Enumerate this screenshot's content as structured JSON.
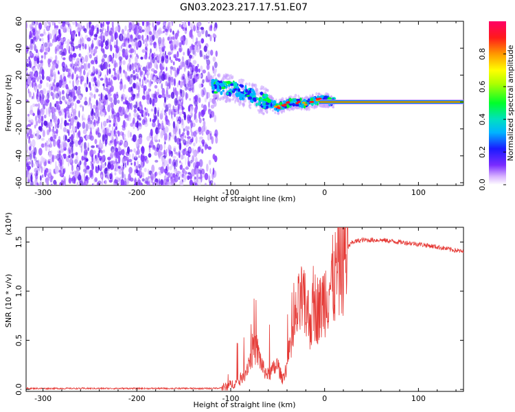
{
  "title": "GN03.2023.217.17.51.E07",
  "colors": {
    "snr_line": "#e53935",
    "spectrogram_noise": "#7a2cff",
    "background": "#ffffff"
  },
  "chart_data": [
    {
      "type": "heatmap",
      "panel": "top",
      "xlabel": "Height of straight line (km)",
      "ylabel": "Frequency (Hz)",
      "xlim": [
        -318,
        148
      ],
      "ylim": [
        -62,
        60
      ],
      "xticks": [
        -300,
        -200,
        -100,
        0,
        100
      ],
      "yticks": [
        60,
        40,
        20,
        0,
        -20,
        -40,
        -60
      ],
      "grid": false,
      "description_of_regions": {
        "broadband_noise_x_range": [
          -318,
          -115
        ],
        "signal_track_x_range": [
          -120,
          10
        ],
        "narrowband_line_x_range": [
          -5,
          148
        ],
        "narrowband_line_frequency": 0
      },
      "signal_track": {
        "x": [
          -120,
          -110,
          -100,
          -90,
          -80,
          -70,
          -60,
          -50,
          -40,
          -30,
          -20,
          -10,
          0,
          10
        ],
        "y": [
          12,
          11,
          10,
          8,
          5,
          2,
          0,
          -4,
          -1,
          0,
          -1,
          1,
          2,
          0
        ]
      },
      "colorbar": {
        "label": "Normalized spectral amplitude",
        "range": [
          0,
          1
        ],
        "ticks": [
          0.0,
          0.2,
          0.4,
          0.6,
          0.8
        ],
        "tick_labels": [
          "0.0",
          "0.2",
          "0.4",
          "0.6",
          "0.8"
        ]
      }
    },
    {
      "type": "line",
      "panel": "bottom",
      "xlabel": "Height of straight line (km)",
      "ylabel": "SNR (10 * v/v)",
      "y_multiplier": "(x10⁴)",
      "xlim": [
        -318,
        148
      ],
      "ylim": [
        -0.02,
        1.65
      ],
      "xticks": [
        -300,
        -200,
        -100,
        0,
        100
      ],
      "yticks": [
        0.0,
        0.5,
        1.0,
        1.5
      ],
      "ytick_labels": [
        "0.0",
        "0.5",
        "1.0",
        "1.5"
      ],
      "grid": false,
      "series": [
        {
          "x": [
            -318,
            -200,
            -120,
            -105,
            -100,
            -90,
            -85,
            -80,
            -75,
            -70,
            -65,
            -60,
            -55,
            -50,
            -45,
            -40,
            -35,
            -30,
            -25,
            -20,
            -15,
            -10,
            -5,
            0,
            5,
            10,
            15,
            20,
            25,
            30,
            40,
            50,
            60,
            80,
            100,
            120,
            148
          ],
          "y": [
            0.01,
            0.01,
            0.01,
            0.02,
            0.05,
            0.08,
            0.15,
            0.3,
            0.45,
            0.35,
            0.2,
            0.15,
            0.2,
            0.25,
            0.1,
            0.25,
            0.45,
            0.75,
            0.9,
            0.8,
            0.7,
            0.85,
            0.8,
            0.95,
            1.05,
            1.1,
            1.25,
            1.35,
            1.45,
            1.5,
            1.52,
            1.52,
            1.52,
            1.5,
            1.48,
            1.45,
            1.4
          ]
        }
      ]
    }
  ]
}
